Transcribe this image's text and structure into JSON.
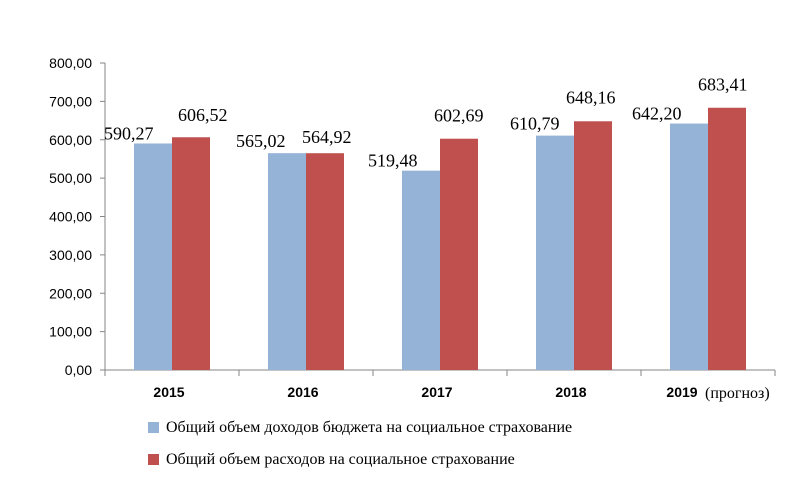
{
  "chart_data": {
    "type": "bar",
    "categories": [
      "2015",
      "2016",
      "2017",
      "2018",
      "2019"
    ],
    "category_note": "(прогноз)",
    "series": [
      {
        "name": "Общий объем доходов бюджета на социальное страхование",
        "color": "#95B3D7",
        "values": [
          590.27,
          565.02,
          519.48,
          610.79,
          642.2
        ],
        "labels": [
          "590,27",
          "565,02",
          "519,48",
          "610,79",
          "642,20"
        ]
      },
      {
        "name": "Общий объем расходов на социальное страхование",
        "color": "#C0504D",
        "values": [
          606.52,
          564.92,
          602.69,
          648.16,
          683.41
        ],
        "labels": [
          "606,52",
          "564,92",
          "602,69",
          "648,16",
          "683,41"
        ]
      }
    ],
    "ylim": [
      0,
      800
    ],
    "yticks": [
      "0,00",
      "100,00",
      "200,00",
      "300,00",
      "400,00",
      "500,00",
      "600,00",
      "700,00",
      "800,00"
    ],
    "grid": false,
    "legend_position": "bottom"
  }
}
